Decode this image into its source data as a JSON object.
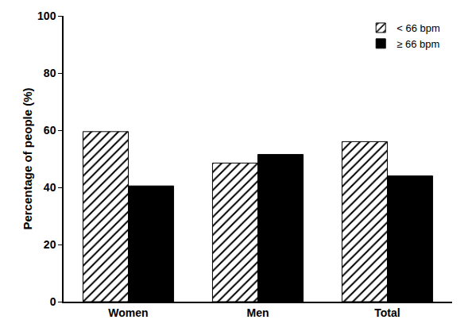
{
  "chart_data": {
    "type": "bar",
    "ylabel": "Percentage of people (%)",
    "categories": [
      "Women",
      "Men",
      "Total"
    ],
    "series": [
      {
        "name": "< 66 bpm",
        "color": "#000000",
        "marker": "hatched",
        "values": [
          59.5,
          48.5,
          56
        ]
      },
      {
        "name": "≥ 66 bpm",
        "color": "#000000",
        "marker": "solid",
        "values": [
          40.5,
          51.5,
          44
        ]
      }
    ],
    "ylim": [
      0,
      100
    ],
    "yticks": [
      0,
      20,
      40,
      60,
      80,
      100
    ],
    "grid": false,
    "legend": "upper right"
  }
}
